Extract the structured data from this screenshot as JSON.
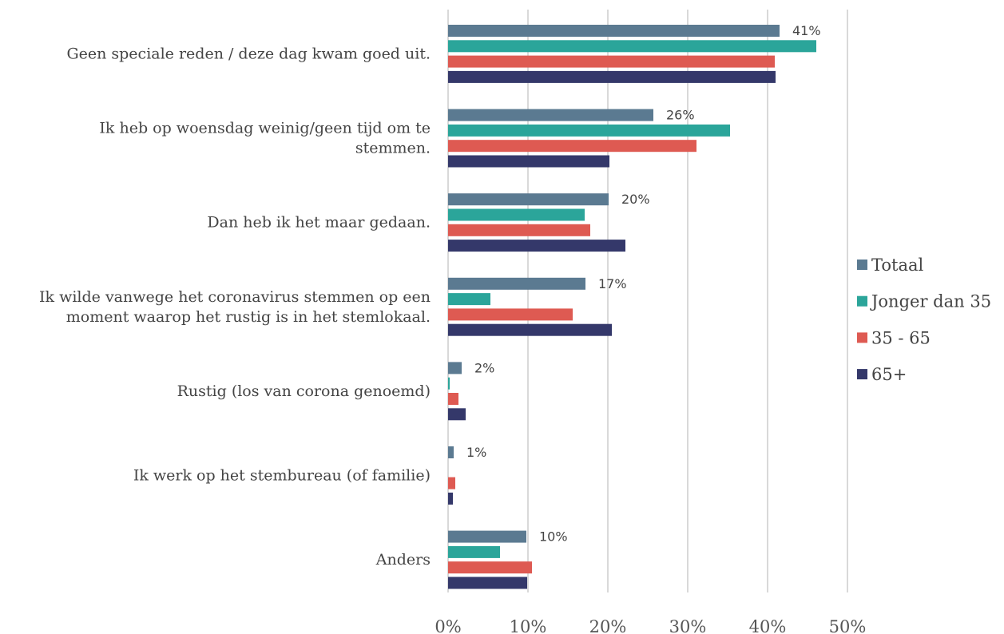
{
  "chart_data": {
    "type": "bar",
    "orientation": "horizontal",
    "categories": [
      [
        "Geen speciale reden / deze dag kwam goed uit."
      ],
      [
        "Ik heb op woensdag weinig/geen tijd om te",
        "stemmen."
      ],
      [
        "Dan heb ik het maar gedaan."
      ],
      [
        "Ik wilde vanwege het coronavirus stemmen op een",
        "moment waarop het rustig is in het stemlokaal."
      ],
      [
        "Rustig (los van corona genoemd)"
      ],
      [
        "Ik werk op het stembureau (of familie)"
      ],
      [
        "Anders"
      ]
    ],
    "series": [
      {
        "name": "Totaal",
        "color": "#5b7a91",
        "values": [
          41.5,
          25.7,
          20.1,
          17.2,
          1.7,
          0.7,
          9.8
        ]
      },
      {
        "name": "Jonger dan 35",
        "color": "#2ba59a",
        "values": [
          46.1,
          35.3,
          17.1,
          5.3,
          0.2,
          0,
          6.5
        ]
      },
      {
        "name": "35 - 65",
        "color": "#de5a52",
        "values": [
          40.9,
          31.1,
          17.8,
          15.6,
          1.3,
          0.9,
          10.5
        ]
      },
      {
        "name": "65+",
        "color": "#34386a",
        "values": [
          41.0,
          20.2,
          22.2,
          20.5,
          2.2,
          0.6,
          9.9
        ]
      }
    ],
    "data_labels": [
      "41%",
      "26%",
      "20%",
      "17%",
      "2%",
      "1%",
      "10%"
    ],
    "xticks": [
      "0%",
      "10%",
      "20%",
      "30%",
      "40%",
      "50%"
    ],
    "xlim": [
      0,
      50
    ],
    "grid": true,
    "legend_position": "right"
  }
}
